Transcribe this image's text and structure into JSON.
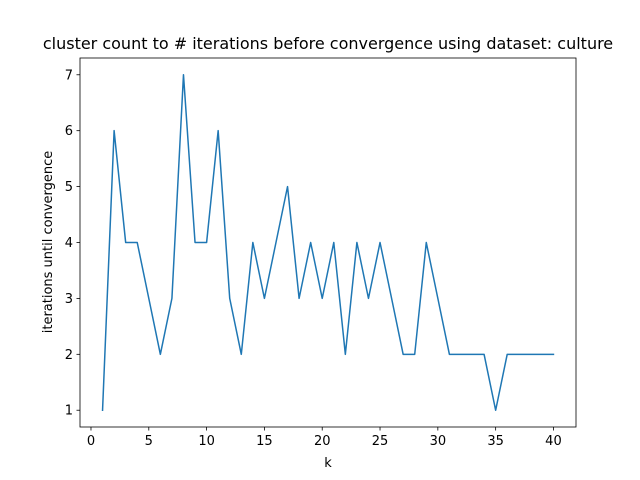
{
  "chart_data": {
    "type": "line",
    "title": "cluster count to # iterations before convergence using dataset: culture",
    "xlabel": "k",
    "ylabel": "iterations until convergence",
    "xlim": [
      -0.95,
      41.95
    ],
    "ylim": [
      0.7,
      7.3
    ],
    "xticks": [
      0,
      5,
      10,
      15,
      20,
      25,
      30,
      35,
      40
    ],
    "yticks": [
      1,
      2,
      3,
      4,
      5,
      6,
      7
    ],
    "grid": false,
    "series": [
      {
        "color": "#1f77b4",
        "x": [
          1,
          2,
          3,
          4,
          5,
          6,
          7,
          8,
          9,
          10,
          11,
          12,
          13,
          14,
          15,
          16,
          17,
          18,
          19,
          20,
          21,
          22,
          23,
          24,
          25,
          26,
          27,
          28,
          29,
          30,
          31,
          32,
          33,
          34,
          35,
          36,
          37,
          38,
          39,
          40
        ],
        "y": [
          1,
          6,
          4,
          4,
          3,
          2,
          3,
          7,
          4,
          4,
          6,
          3,
          2,
          4,
          3,
          4,
          5,
          3,
          4,
          3,
          4,
          2,
          4,
          3,
          4,
          3,
          2,
          2,
          4,
          3,
          2,
          2,
          2,
          2,
          1,
          2,
          2,
          2,
          2,
          2
        ]
      }
    ]
  }
}
